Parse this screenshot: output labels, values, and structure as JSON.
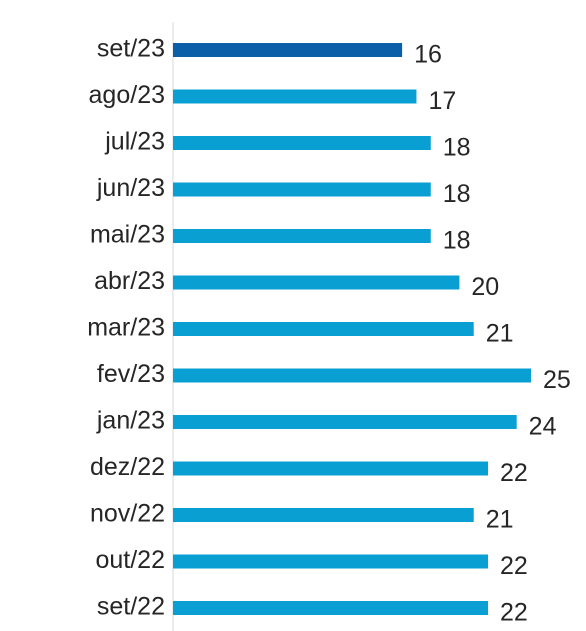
{
  "chart_data": {
    "type": "bar",
    "orientation": "horizontal",
    "categories": [
      "set/23",
      "ago/23",
      "jul/23",
      "jun/23",
      "mai/23",
      "abr/23",
      "mar/23",
      "fev/23",
      "jan/23",
      "dez/22",
      "nov/22",
      "out/22",
      "set/22"
    ],
    "values": [
      16,
      17,
      18,
      18,
      18,
      20,
      21,
      25,
      24,
      22,
      21,
      22,
      22
    ],
    "colors": [
      "#0b5ea8",
      "#0a9fd3",
      "#0a9fd3",
      "#0a9fd3",
      "#0a9fd3",
      "#0a9fd3",
      "#0a9fd3",
      "#0a9fd3",
      "#0a9fd3",
      "#0a9fd3",
      "#0a9fd3",
      "#0a9fd3",
      "#0a9fd3"
    ],
    "xlim": [
      0,
      25
    ]
  }
}
